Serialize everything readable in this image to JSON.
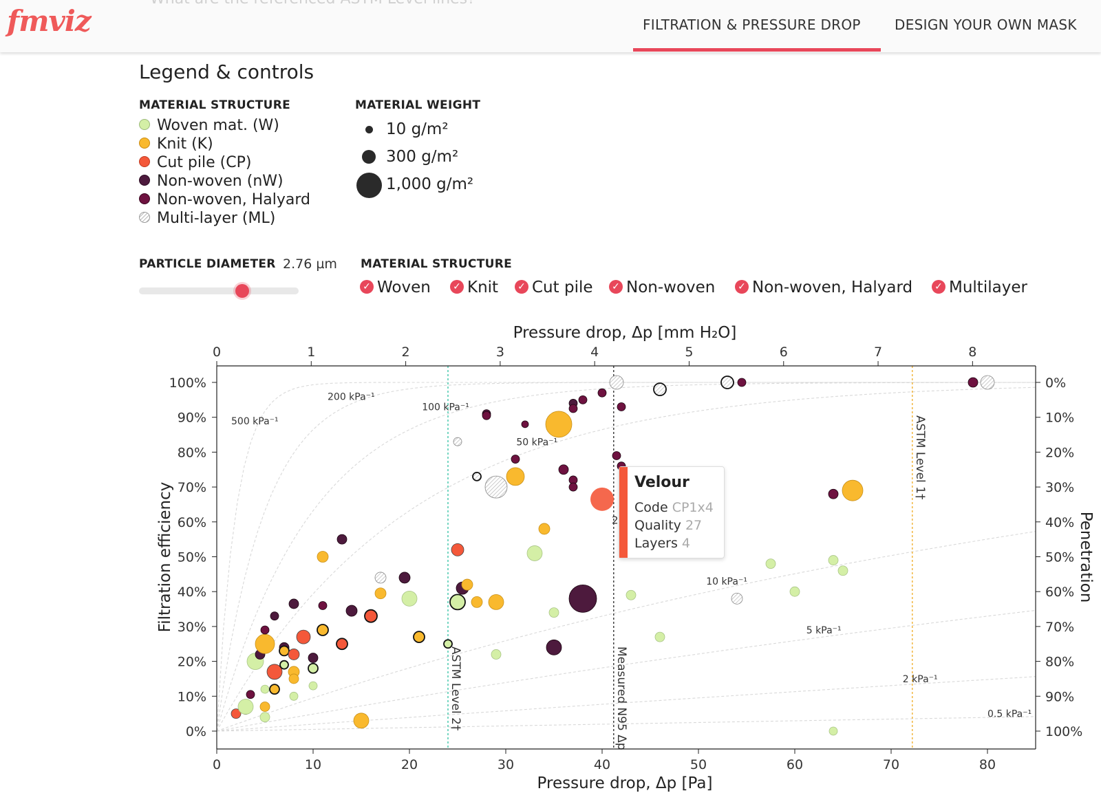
{
  "header": {
    "logo": "fmviz",
    "faded_question": "What are the referenced ASTM Level lines?",
    "tabs": [
      {
        "label": "FILTRATION & PRESSURE DROP",
        "active": true
      },
      {
        "label": "DESIGN YOUR OWN MASK",
        "active": false
      }
    ],
    "accent_color": "#e8475a"
  },
  "legend": {
    "title": "Legend & controls",
    "structure_label": "MATERIAL STRUCTURE",
    "structures": [
      {
        "label": "Woven mat. (W)",
        "color": "#d4efa6"
      },
      {
        "label": "Knit (K)",
        "color": "#f9b92e"
      },
      {
        "label": "Cut pile (CP)",
        "color": "#f4583a"
      },
      {
        "label": "Non-woven (nW)",
        "color": "#4d1a3d"
      },
      {
        "label": "Non-woven, Halyard",
        "color": "#6e1240"
      },
      {
        "label": "Multi-layer (ML)",
        "color": "hatched"
      }
    ],
    "weight_label": "MATERIAL WEIGHT",
    "weights": [
      "10 g/m²",
      "300 g/m²",
      "1,000 g/m²"
    ]
  },
  "controls": {
    "particle_label": "PARTICLE DIAMETER",
    "particle_value": "2.76 µm",
    "particle_fraction": 0.65,
    "filter_label": "MATERIAL STRUCTURE",
    "filters": [
      {
        "label": "Woven",
        "checked": true
      },
      {
        "label": "Knit",
        "checked": true
      },
      {
        "label": "Cut pile",
        "checked": true
      },
      {
        "label": "Non-woven",
        "checked": true
      },
      {
        "label": "Non-woven, Halyard",
        "checked": true
      },
      {
        "label": "Multilayer",
        "checked": true
      }
    ]
  },
  "tooltip": {
    "title": "Velour",
    "code_label": "Code",
    "code": "CP1x4",
    "quality_label": "Quality",
    "quality": "27",
    "layers_label": "Layers",
    "layers": "4"
  },
  "chart_data": {
    "type": "scatter",
    "top_xlabel": "Pressure drop, Δp [mm H₂O]",
    "xlabel": "Pressure drop, Δp [Pa]",
    "ylabel": "Filtration efficiency",
    "y2label": "Penetration",
    "xlim": [
      0,
      85
    ],
    "ylim": [
      -5,
      105
    ],
    "x_ticks": [
      "0",
      "10",
      "20",
      "30",
      "40",
      "50",
      "60",
      "70",
      "80"
    ],
    "top_ticks": [
      "0",
      "1",
      "2",
      "3",
      "4",
      "5",
      "6",
      "7",
      "8"
    ],
    "y_ticks": [
      "0%",
      "10%",
      "20%",
      "30%",
      "40%",
      "50%",
      "60%",
      "70%",
      "80%",
      "90%",
      "100%"
    ],
    "y2_ticks": [
      "100%",
      "90%",
      "80%",
      "70%",
      "60%",
      "50%",
      "40%",
      "30%",
      "20%",
      "10%",
      "0%"
    ],
    "quality_lines": [
      {
        "label": "500 kPa⁻¹",
        "q": 500,
        "lx": 1.5,
        "ly": 88
      },
      {
        "label": "200 kPa⁻¹",
        "q": 200,
        "lx": 11.5,
        "ly": 95
      },
      {
        "label": "100 kPa⁻¹",
        "q": 100,
        "lx": 21.3,
        "ly": 92
      },
      {
        "label": "50 kPa⁻¹",
        "q": 50,
        "lx": 31.1,
        "ly": 82
      },
      {
        "label": "10 kPa⁻¹",
        "q": 10,
        "lx": 50.8,
        "ly": 42
      },
      {
        "label": "5 kPa⁻¹",
        "q": 5,
        "lx": 61.2,
        "ly": 28
      },
      {
        "label": "2 kPa⁻¹",
        "q": 2,
        "lx": 71.2,
        "ly": 14
      },
      {
        "label": "0.5 kPa⁻¹",
        "q": 0.5,
        "lx": 80,
        "ly": 4
      }
    ],
    "ref_lines": [
      {
        "label": "ASTM Level 2†",
        "x": 24,
        "color": "#3cc4a8"
      },
      {
        "label": "Measured N95 Δp",
        "x": 41.2,
        "color": "#333333"
      },
      {
        "label": "ASTM Level 1†",
        "x": 72.2,
        "color": "#f0b030"
      }
    ],
    "tooltip_hidden_label": "2",
    "points": [
      {
        "x": 2,
        "y": 5,
        "t": "CP",
        "s": 7
      },
      {
        "x": 3,
        "y": 6,
        "t": "nW",
        "s": 6
      },
      {
        "x": 3,
        "y": 7,
        "t": "W",
        "s": 11
      },
      {
        "x": 3.5,
        "y": 10.5,
        "t": "H",
        "s": 6
      },
      {
        "x": 4,
        "y": 20,
        "t": "W",
        "s": 12
      },
      {
        "x": 4.5,
        "y": 22,
        "t": "nW",
        "s": 7
      },
      {
        "x": 5,
        "y": 25,
        "t": "K",
        "s": 14
      },
      {
        "x": 5,
        "y": 29,
        "t": "H",
        "s": 6
      },
      {
        "x": 5,
        "y": 12,
        "t": "W",
        "s": 6
      },
      {
        "x": 5,
        "y": 7,
        "t": "K",
        "s": 7
      },
      {
        "x": 5,
        "y": 4,
        "t": "W",
        "s": 7
      },
      {
        "x": 6,
        "y": 33,
        "t": "nW",
        "s": 6
      },
      {
        "x": 6,
        "y": 17,
        "t": "CP",
        "s": 11
      },
      {
        "x": 6,
        "y": 12,
        "t": "Kb",
        "s": 7
      },
      {
        "x": 7,
        "y": 24,
        "t": "nW",
        "s": 7
      },
      {
        "x": 7,
        "y": 23,
        "t": "Kb",
        "s": 7
      },
      {
        "x": 7,
        "y": 19,
        "t": "Wb",
        "s": 6
      },
      {
        "x": 8,
        "y": 22,
        "t": "CP",
        "s": 8
      },
      {
        "x": 8,
        "y": 36.5,
        "t": "nW",
        "s": 7
      },
      {
        "x": 8,
        "y": 17,
        "t": "K",
        "s": 8
      },
      {
        "x": 8,
        "y": 15,
        "t": "K",
        "s": 7
      },
      {
        "x": 8,
        "y": 10,
        "t": "W",
        "s": 6
      },
      {
        "x": 9,
        "y": 27,
        "t": "CP",
        "s": 10
      },
      {
        "x": 10,
        "y": 18,
        "t": "Wb",
        "s": 7
      },
      {
        "x": 10,
        "y": 21,
        "t": "nW",
        "s": 7
      },
      {
        "x": 10,
        "y": 13,
        "t": "W",
        "s": 6
      },
      {
        "x": 11,
        "y": 36,
        "t": "H",
        "s": 6
      },
      {
        "x": 11,
        "y": 29,
        "t": "Kb",
        "s": 8
      },
      {
        "x": 11,
        "y": 50,
        "t": "K",
        "s": 8
      },
      {
        "x": 13,
        "y": 55,
        "t": "nW",
        "s": 7
      },
      {
        "x": 13,
        "y": 25,
        "t": "CPb",
        "s": 8
      },
      {
        "x": 14,
        "y": 34.5,
        "t": "nW",
        "s": 8
      },
      {
        "x": 15,
        "y": 3,
        "t": "K",
        "s": 11
      },
      {
        "x": 16,
        "y": 33,
        "t": "CPb",
        "s": 9
      },
      {
        "x": 17,
        "y": 44,
        "t": "ML",
        "s": 8
      },
      {
        "x": 17,
        "y": 39.5,
        "t": "K",
        "s": 8
      },
      {
        "x": 19.5,
        "y": 44,
        "t": "nW",
        "s": 8
      },
      {
        "x": 20,
        "y": 38,
        "t": "W",
        "s": 11
      },
      {
        "x": 21,
        "y": 27,
        "t": "Kb",
        "s": 8
      },
      {
        "x": 24,
        "y": 25,
        "t": "Wb",
        "s": 6
      },
      {
        "x": 25,
        "y": 37,
        "t": "Wb",
        "s": 11
      },
      {
        "x": 25,
        "y": 52,
        "t": "CP",
        "s": 9
      },
      {
        "x": 25,
        "y": 83,
        "t": "ML",
        "s": 6
      },
      {
        "x": 25.5,
        "y": 41,
        "t": "nW",
        "s": 9
      },
      {
        "x": 26,
        "y": 42,
        "t": "K",
        "s": 8
      },
      {
        "x": 27,
        "y": 73,
        "t": "ML_o",
        "s": 6
      },
      {
        "x": 27,
        "y": 37,
        "t": "K",
        "s": 8
      },
      {
        "x": 28,
        "y": 91,
        "t": "nW",
        "s": 6
      },
      {
        "x": 28,
        "y": 90.5,
        "t": "H",
        "s": 6
      },
      {
        "x": 29,
        "y": 37,
        "t": "K",
        "s": 11
      },
      {
        "x": 29,
        "y": 22,
        "t": "W",
        "s": 7
      },
      {
        "x": 29,
        "y": 70,
        "t": "ML",
        "s": 16
      },
      {
        "x": 31,
        "y": 78,
        "t": "H",
        "s": 6
      },
      {
        "x": 31,
        "y": 73,
        "t": "K",
        "s": 13
      },
      {
        "x": 32,
        "y": 88,
        "t": "H",
        "s": 5
      },
      {
        "x": 33,
        "y": 51,
        "t": "W",
        "s": 11
      },
      {
        "x": 34,
        "y": 58,
        "t": "K",
        "s": 8
      },
      {
        "x": 35,
        "y": 34,
        "t": "W",
        "s": 7
      },
      {
        "x": 35,
        "y": 24,
        "t": "nW",
        "s": 11
      },
      {
        "x": 35.5,
        "y": 88,
        "t": "K",
        "s": 19
      },
      {
        "x": 36,
        "y": 75,
        "t": "H",
        "s": 7
      },
      {
        "x": 37,
        "y": 94,
        "t": "nW",
        "s": 6
      },
      {
        "x": 37,
        "y": 92.5,
        "t": "H",
        "s": 6
      },
      {
        "x": 37,
        "y": 72,
        "t": "H",
        "s": 6
      },
      {
        "x": 37,
        "y": 70,
        "t": "H",
        "s": 6
      },
      {
        "x": 38,
        "y": 95,
        "t": "H",
        "s": 6
      },
      {
        "x": 38,
        "y": 38,
        "t": "nW",
        "s": 20
      },
      {
        "x": 40,
        "y": 66.5,
        "t": "CPs",
        "s": 17
      },
      {
        "x": 40,
        "y": 97,
        "t": "H",
        "s": 6
      },
      {
        "x": 41.5,
        "y": 100,
        "t": "ML",
        "s": 10
      },
      {
        "x": 41.5,
        "y": 79,
        "t": "H",
        "s": 6
      },
      {
        "x": 42,
        "y": 76,
        "t": "H",
        "s": 6
      },
      {
        "x": 42,
        "y": 93,
        "t": "H",
        "s": 6
      },
      {
        "x": 43,
        "y": 39,
        "t": "W",
        "s": 7
      },
      {
        "x": 46,
        "y": 98,
        "t": "ML_o",
        "s": 9
      },
      {
        "x": 46,
        "y": 27,
        "t": "W",
        "s": 7
      },
      {
        "x": 53,
        "y": 100,
        "t": "ML_o",
        "s": 9
      },
      {
        "x": 54,
        "y": 38,
        "t": "ML",
        "s": 8
      },
      {
        "x": 54.5,
        "y": 100,
        "t": "H",
        "s": 6
      },
      {
        "x": 57.5,
        "y": 48,
        "t": "W",
        "s": 7
      },
      {
        "x": 60,
        "y": 40,
        "t": "W",
        "s": 7
      },
      {
        "x": 64,
        "y": 49,
        "t": "W",
        "s": 7
      },
      {
        "x": 64,
        "y": 68,
        "t": "H",
        "s": 7
      },
      {
        "x": 64,
        "y": 0,
        "t": "W",
        "s": 6
      },
      {
        "x": 65,
        "y": 46,
        "t": "W",
        "s": 7
      },
      {
        "x": 66,
        "y": 69,
        "t": "K",
        "s": 15
      },
      {
        "x": 78.5,
        "y": 100,
        "t": "H",
        "s": 7
      },
      {
        "x": 80,
        "y": 100,
        "t": "ML",
        "s": 10
      }
    ]
  }
}
